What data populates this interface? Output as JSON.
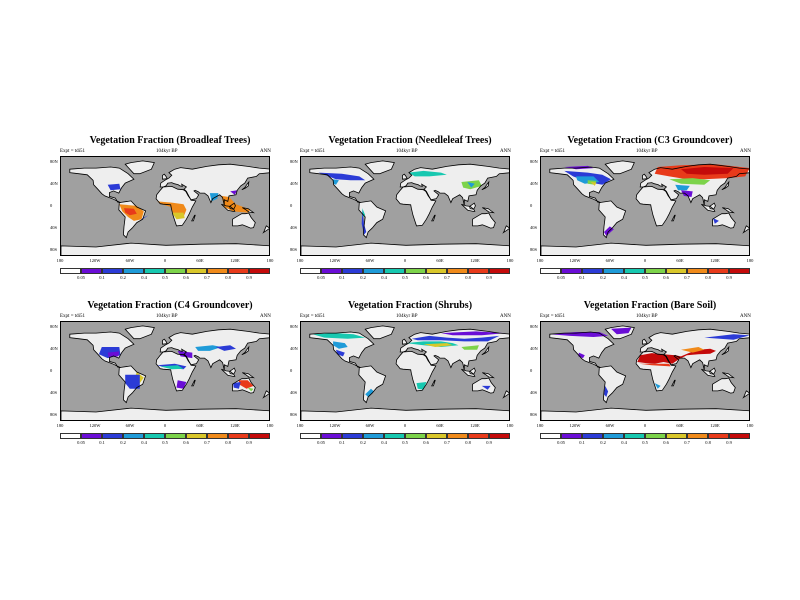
{
  "panels": [
    {
      "title": "Vegetation Fraction (Broadleaf Trees)",
      "expt": "Expt = tdi51",
      "time": "104kyr BP",
      "season": "ANN"
    },
    {
      "title": "Vegetation Fraction (Needleleaf Trees)",
      "expt": "Expt = tdi51",
      "time": "104kyr BP",
      "season": "ANN"
    },
    {
      "title": "Vegetation Fraction (C3 Groundcover)",
      "expt": "Expt = tdi51",
      "time": "104kyr BP",
      "season": "ANN"
    },
    {
      "title": "Vegetation Fraction (C4 Groundcover)",
      "expt": "Expt = tdi51",
      "time": "104kyr BP",
      "season": "ANN"
    },
    {
      "title": "Vegetation Fraction (Shrubs)",
      "expt": "Expt = tdi51",
      "time": "104kyr BP",
      "season": "ANN"
    },
    {
      "title": "Vegetation Fraction (Bare Soil)",
      "expt": "Expt = tdi51",
      "time": "104kyr BP",
      "season": "ANN"
    }
  ],
  "lat_labels": [
    "80N",
    "40N",
    "0",
    "40S",
    "80S"
  ],
  "lon_labels": [
    "180",
    "120W",
    "60W",
    "0",
    "60E",
    "120E",
    "180"
  ],
  "colorbar": {
    "ticks": [
      "0.05",
      "0.1",
      "0.2",
      "0.4",
      "0.5",
      "0.6",
      "0.7",
      "0.8",
      "0.9"
    ],
    "colors": [
      "#ffffff",
      "#6a0dd6",
      "#2b3bd6",
      "#1f9bd8",
      "#17c8b0",
      "#7cd34a",
      "#d9c72a",
      "#f08a1a",
      "#e83a1a",
      "#c40a0a"
    ]
  },
  "colors": {
    "ocean": "#a0a0a0",
    "land": "#eeeeee",
    "coast": "#000000"
  }
}
